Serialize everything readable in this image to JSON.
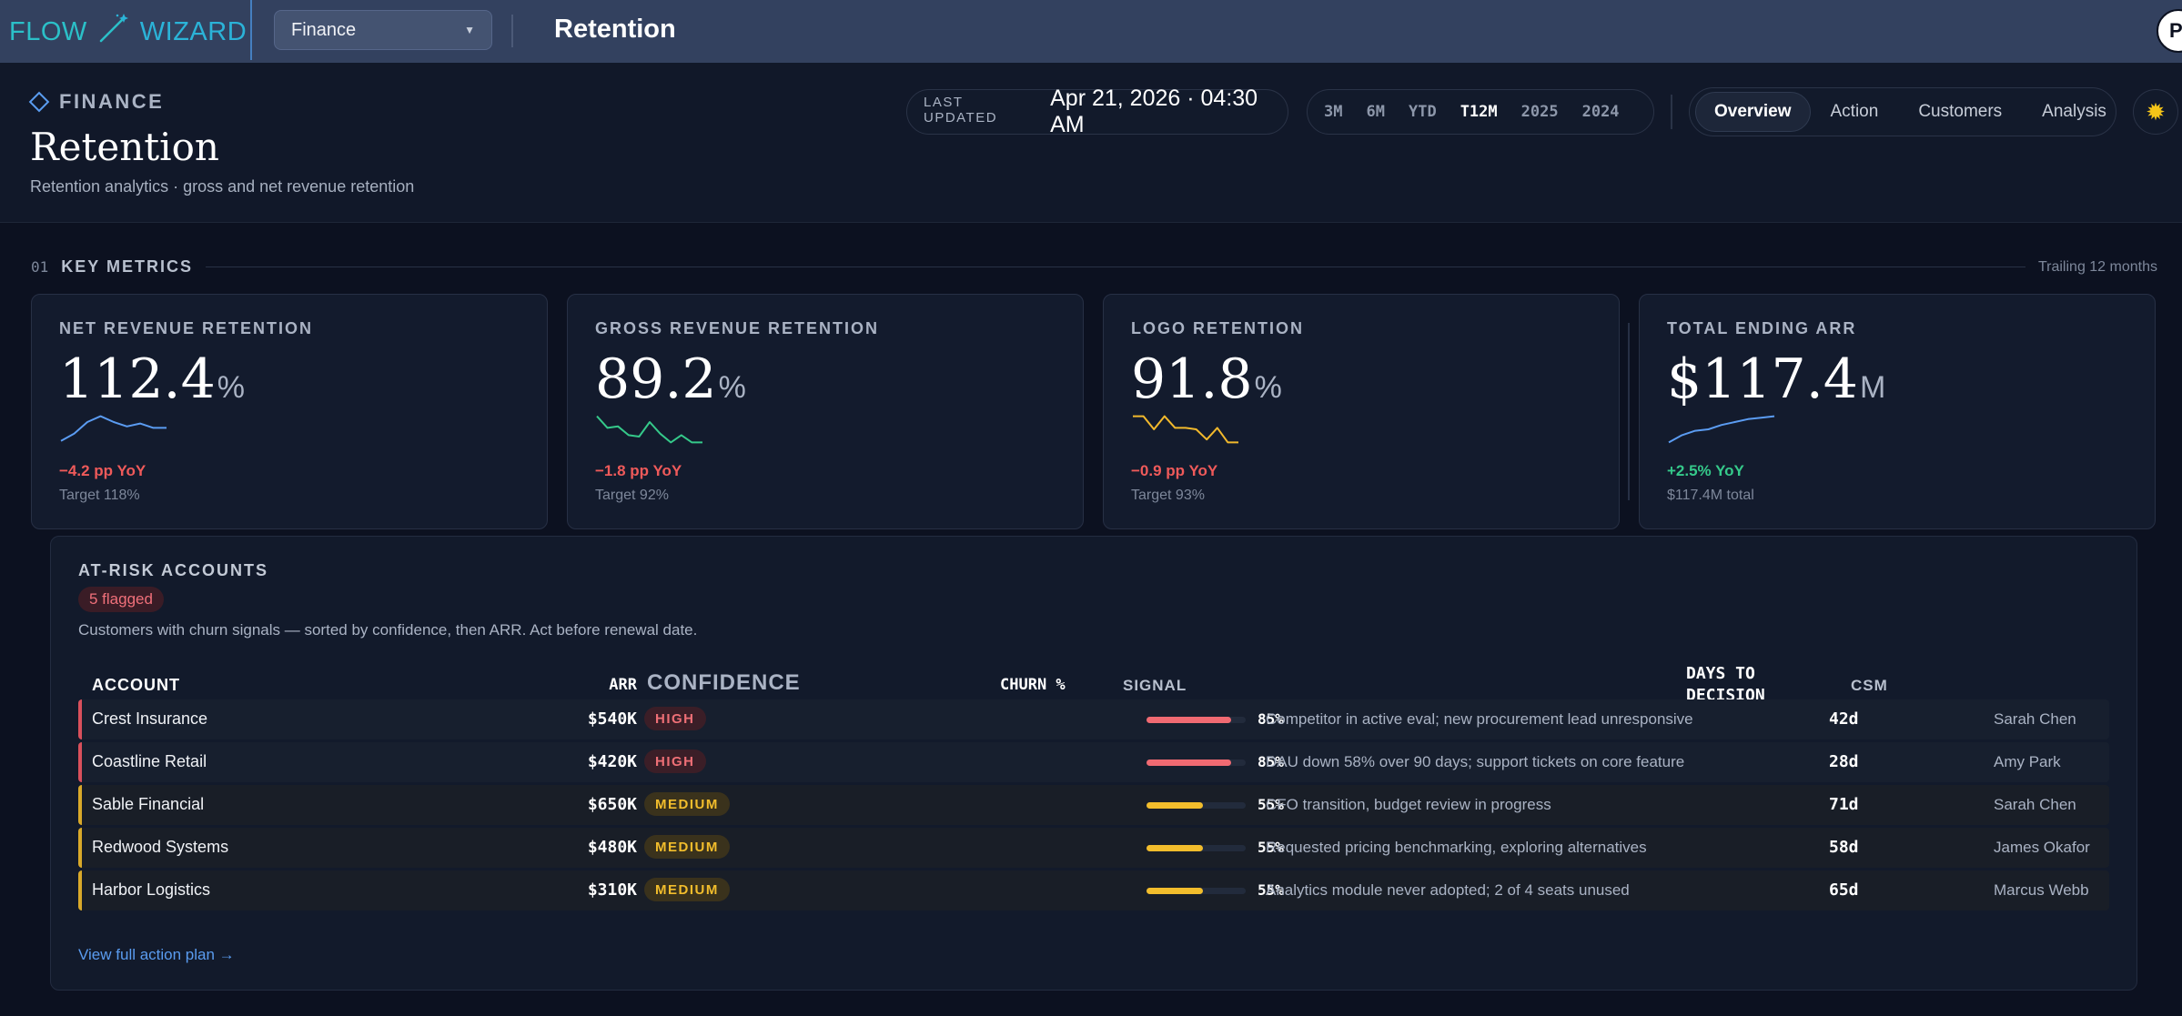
{
  "topbar": {
    "logo_left": "FLOW",
    "logo_right": "WIZARD",
    "workspace_select": "Finance",
    "page_name": "Retention",
    "avatar_initial": "P"
  },
  "header": {
    "breadcrumb": "FINANCE",
    "title": "Retention",
    "subtitle": "Retention analytics · gross and net revenue retention",
    "last_updated_label": "LAST UPDATED",
    "last_updated_value": "Apr 21, 2026 · 04:30 AM",
    "ranges": [
      "3M",
      "6M",
      "YTD",
      "T12M",
      "2025",
      "2024"
    ],
    "active_range": "T12M",
    "tabs": [
      "Overview",
      "Action",
      "Customers",
      "Analysis"
    ],
    "active_tab": "Overview",
    "theme_icon": "sun-icon"
  },
  "section": {
    "number": "01",
    "name": "KEY METRICS",
    "right": "Trailing 12 months"
  },
  "kpis": [
    {
      "label": "NET REVENUE RETENTION",
      "value": "112.4",
      "unit": "%",
      "delta": "−4.2 pp YoY",
      "note": "Target 118%",
      "color": "#5b9cf2",
      "trend": [
        0.1,
        0.35,
        0.75,
        0.95,
        0.75,
        0.6,
        0.7,
        0.55,
        0.55
      ]
    },
    {
      "label": "GROSS REVENUE RETENTION",
      "value": "89.2",
      "unit": "%",
      "delta": "−1.8 pp YoY",
      "note": "Target 92%",
      "color": "#35c98a",
      "trend": [
        0.95,
        0.55,
        0.6,
        0.3,
        0.25,
        0.75,
        0.35,
        0.05,
        0.3,
        0.05,
        0.05
      ]
    },
    {
      "label": "LOGO RETENTION",
      "value": "91.8",
      "unit": "%",
      "delta": "−0.9 pp YoY",
      "note": "Target 93%",
      "color": "#f2b92c",
      "trend": [
        0.95,
        0.95,
        0.5,
        0.95,
        0.55,
        0.55,
        0.5,
        0.15,
        0.55,
        0.05,
        0.05
      ]
    },
    {
      "label": "TOTAL ENDING ARR",
      "value": "$117.4",
      "unit": "M",
      "delta": "+2.5% YoY",
      "note": "$117.4M total",
      "color": "#5b9cf2",
      "trend": [
        0.05,
        0.3,
        0.45,
        0.5,
        0.65,
        0.75,
        0.85,
        0.9,
        0.95
      ]
    }
  ],
  "at_risk": {
    "title": "AT-RISK ACCOUNTS",
    "badge": "5 flagged",
    "description": "Customers with churn signals — sorted by confidence, then ARR. Act before renewal date.",
    "columns": {
      "account": "ACCOUNT",
      "arr": "ARR",
      "confidence": "CONFIDENCE",
      "churn": "CHURN %",
      "signal": "SIGNAL",
      "days_line1": "DAYS TO",
      "days_line2": "DECISION",
      "csm": "CSM"
    },
    "rows": [
      {
        "account": "Crest Insurance",
        "arr": "$540K",
        "confidence": "HIGH",
        "level": "high",
        "churn_pct": 85,
        "churn_label": "85%",
        "signal": "Competitor in active eval; new procurement lead unresponsive",
        "days": "42d",
        "csm": "Sarah Chen"
      },
      {
        "account": "Coastline Retail",
        "arr": "$420K",
        "confidence": "HIGH",
        "level": "high",
        "churn_pct": 85,
        "churn_label": "85%",
        "signal": "DAU down 58% over 90 days; support tickets on core feature",
        "days": "28d",
        "csm": "Amy Park"
      },
      {
        "account": "Sable Financial",
        "arr": "$650K",
        "confidence": "MEDIUM",
        "level": "medium",
        "churn_pct": 55,
        "churn_label": "55%",
        "signal": "CFO transition, budget review in progress",
        "days": "71d",
        "csm": "Sarah Chen"
      },
      {
        "account": "Redwood Systems",
        "arr": "$480K",
        "confidence": "MEDIUM",
        "level": "medium",
        "churn_pct": 55,
        "churn_label": "55%",
        "signal": "Requested pricing benchmarking, exploring alternatives",
        "days": "58d",
        "csm": "James Okafor"
      },
      {
        "account": "Harbor Logistics",
        "arr": "$310K",
        "confidence": "MEDIUM",
        "level": "medium",
        "churn_pct": 55,
        "churn_label": "55%",
        "signal": "Analytics module never adopted; 2 of 4 seats unused",
        "days": "65d",
        "csm": "Marcus Webb"
      }
    ],
    "link": "View full action plan →"
  },
  "colors": {
    "high": "#f06a72",
    "medium": "#f2bd2c",
    "accent": "#5a9cf0"
  }
}
